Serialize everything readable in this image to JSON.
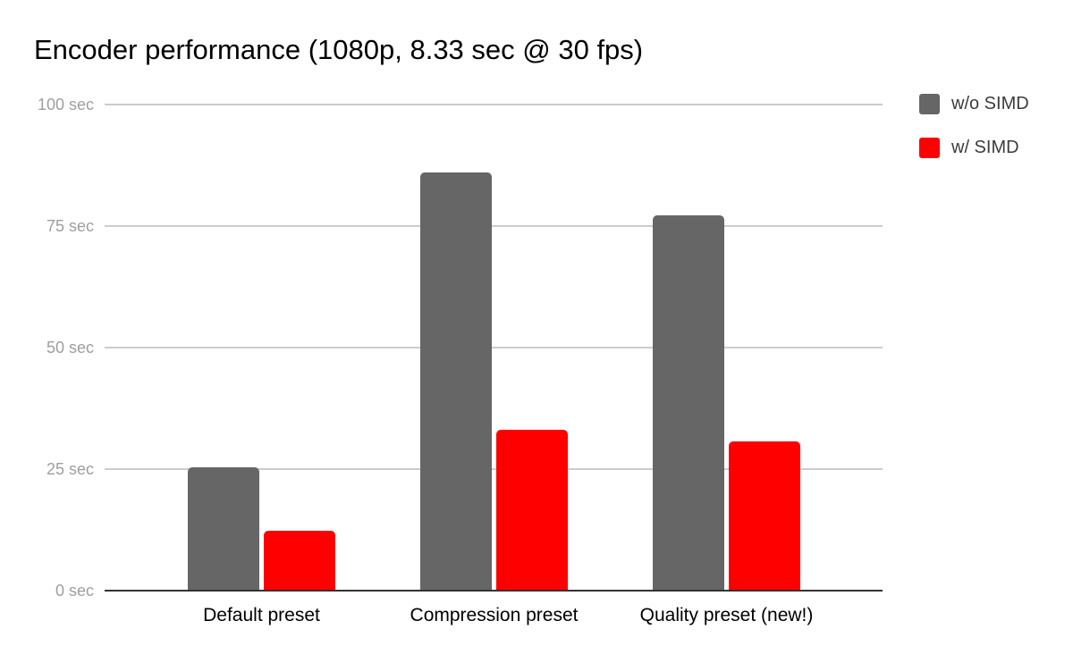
{
  "title": "Encoder performance (1080p, 8.33 sec @ 30 fps)",
  "legend": {
    "position": "top-right",
    "items": [
      {
        "label": "w/o SIMD",
        "color": "#666666"
      },
      {
        "label": "w/ SIMD",
        "color": "#ff0000"
      }
    ]
  },
  "chart_data": {
    "type": "bar",
    "title": "Encoder performance (1080p, 8.33 sec @ 30 fps)",
    "categories": [
      "Default preset",
      "Compression preset",
      "Quality preset (new!)"
    ],
    "series": [
      {
        "name": "w/o SIMD",
        "color": "#666666",
        "values": [
          25.4,
          86.0,
          77.2
        ]
      },
      {
        "name": "w/ SIMD",
        "color": "#ff0000",
        "values": [
          12.3,
          33.0,
          30.7
        ]
      }
    ],
    "xlabel": "",
    "ylabel": "",
    "ylim": [
      0,
      100
    ],
    "yticks": [
      0,
      25,
      50,
      75,
      100
    ],
    "ytick_labels": [
      "0 sec",
      "25 sec",
      "50 sec",
      "75 sec",
      "100 sec"
    ],
    "grid": true,
    "legend_position": "top-right",
    "colors": {
      "background": "#ffffff",
      "gridline": "#cccccc",
      "axis_line": "#333333",
      "tick_label": "#9e9e9e",
      "category_label": "#000000",
      "title": "#000000",
      "legend_label": "#3c3c3c"
    }
  }
}
